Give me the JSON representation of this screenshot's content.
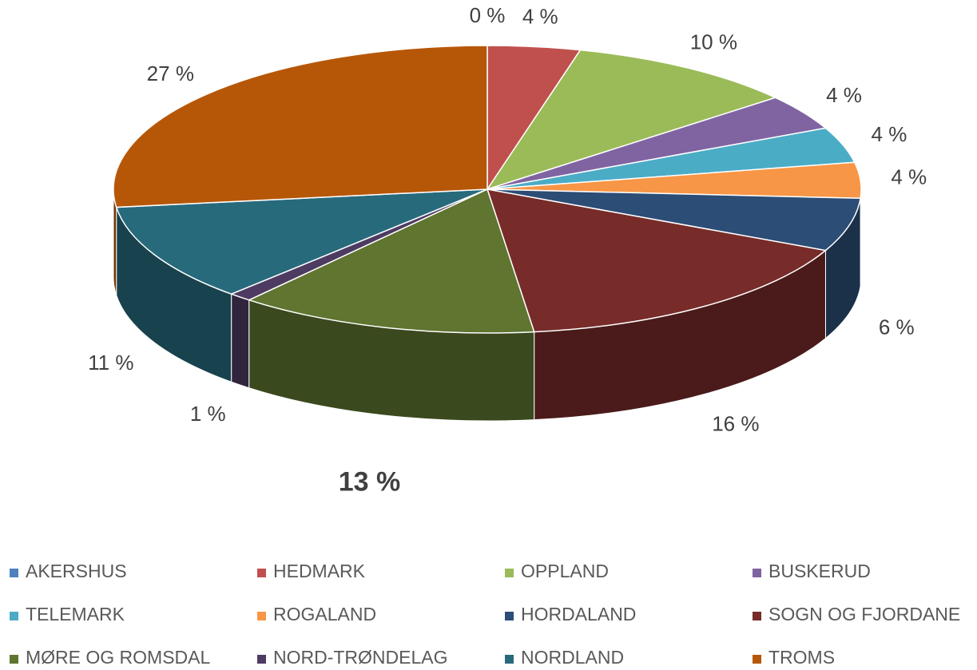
{
  "chart_data": {
    "type": "pie",
    "categories": [
      "AKERSHUS",
      "HEDMARK",
      "OPPLAND",
      "BUSKERUD",
      "TELEMARK",
      "ROGALAND",
      "HORDALAND",
      "SOGN OG FJORDANE",
      "MØRE OG ROMSDAL",
      "NORD-TRØNDELAG",
      "NORDLAND",
      "TROMS"
    ],
    "values": [
      0,
      4,
      10,
      4,
      4,
      4,
      6,
      16,
      13,
      1,
      11,
      27
    ],
    "value_labels": [
      "0 %",
      "4 %",
      "10 %",
      "4 %",
      "4 %",
      "4 %",
      "6 %",
      "16 %",
      "13 %",
      "1 %",
      "11 %",
      "27 %"
    ],
    "colors": [
      "#4f81bd",
      "#c0504d",
      "#9bbb59",
      "#8064a2",
      "#4bacc6",
      "#f79646",
      "#2c4d75",
      "#772c2a",
      "#5f7530",
      "#4d3b62",
      "#276a7c",
      "#b65708"
    ],
    "legend": "bottom"
  }
}
